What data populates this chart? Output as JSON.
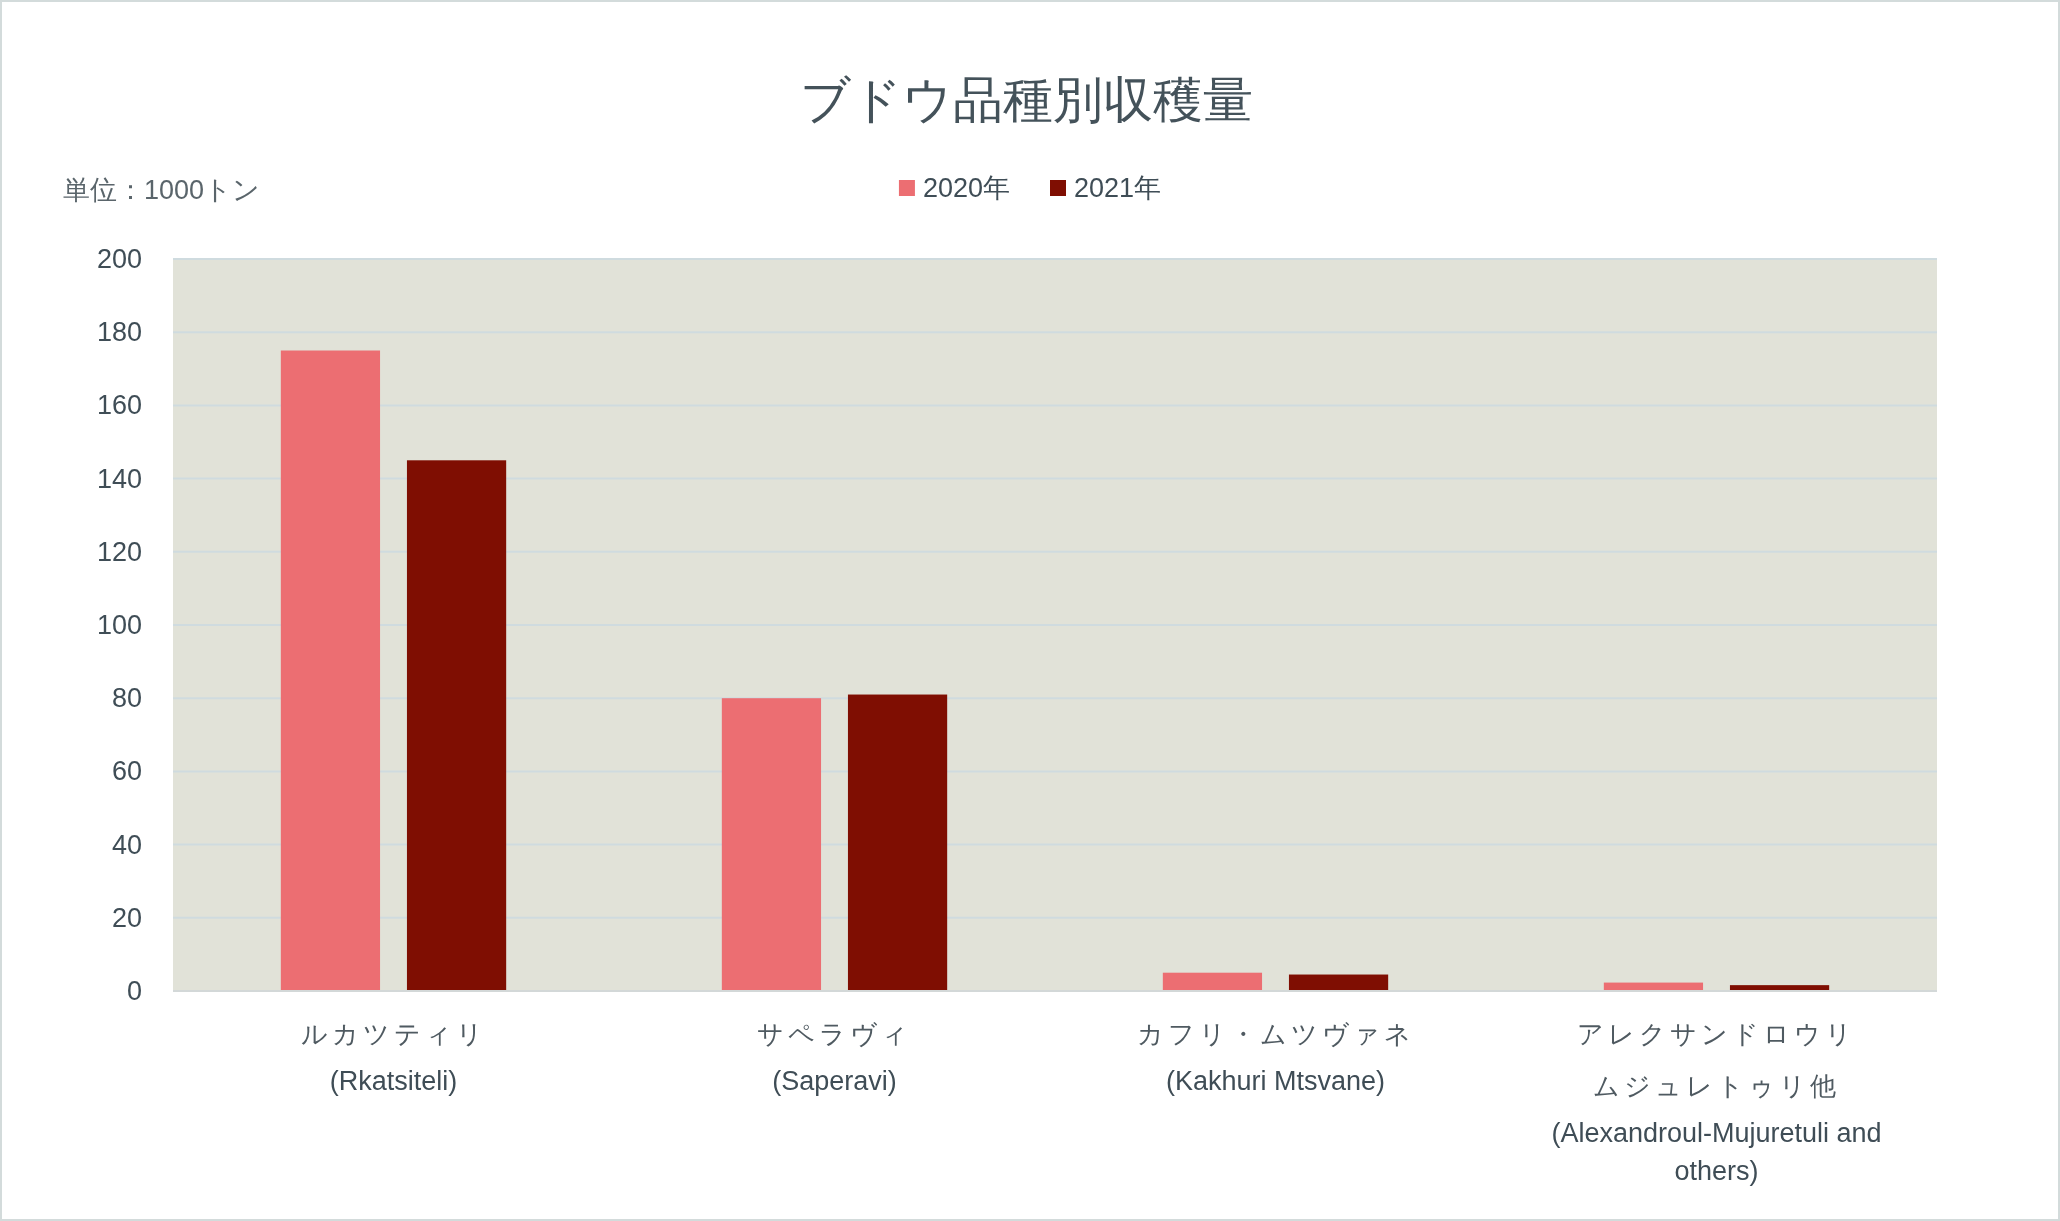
{
  "chart_data": {
    "type": "bar",
    "title": "ブドウ品種別収穫量",
    "ylabel": "単位：1000トン",
    "categories": [
      "ルカツティリ\n(Rkatsiteli)",
      "サペラヴィ\n(Saperavi)",
      "カフリ・ムツヴァネ\n(Kakhuri Mtsvane)",
      "アレクサンドロウリムジュレトゥリ他\n(Alexandroul-Mujuretuli and others)"
    ],
    "series": [
      {
        "name": "2020年",
        "color": "#ec6e72",
        "values": [
          175,
          80,
          5,
          2.3
        ]
      },
      {
        "name": "2021年",
        "color": "#7f0e02",
        "values": [
          145,
          81,
          4.5,
          1.6
        ]
      }
    ],
    "ylim": [
      0,
      200
    ],
    "yticks": [
      0,
      20,
      40,
      60,
      80,
      100,
      120,
      140,
      160,
      180,
      200
    ],
    "grid": "y",
    "legend": "top"
  }
}
